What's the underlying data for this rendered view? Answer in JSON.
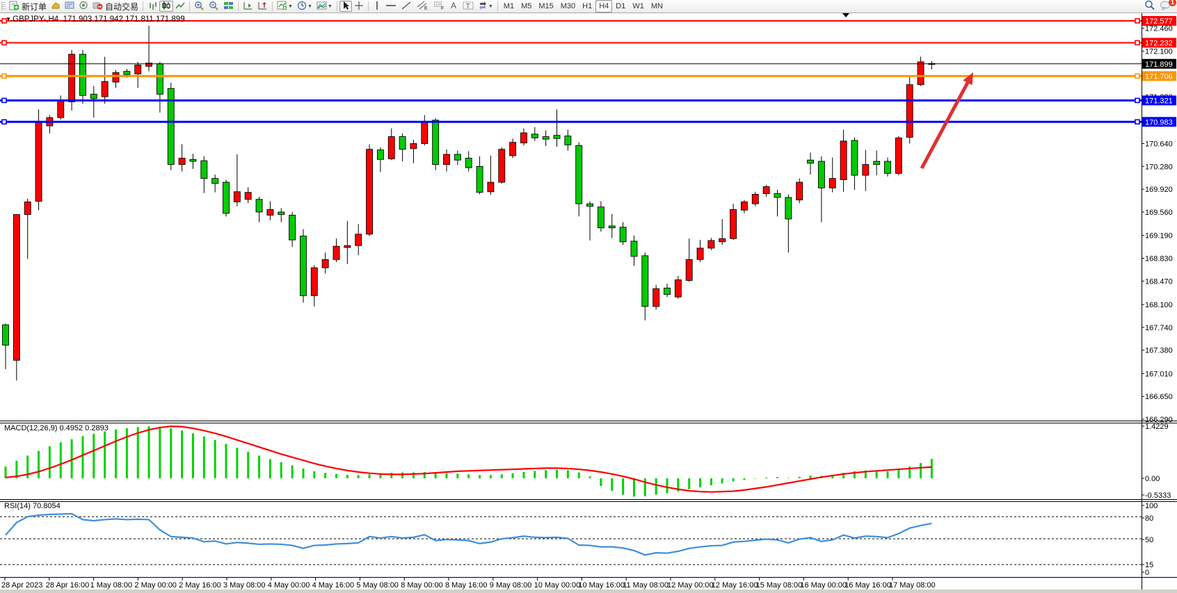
{
  "toolbar": {
    "new_order_label": "新订单",
    "autotrading_label": "自动交易",
    "timeframes": [
      "M1",
      "M5",
      "M15",
      "M30",
      "H1",
      "H4",
      "D1",
      "W1",
      "MN"
    ],
    "active_timeframe": "H4",
    "notification_count": "1"
  },
  "chart": {
    "title_symbol": "GBPJPY-,H4",
    "title_ohlc": "171.903 171.942 171.811 171.899",
    "macd_label": "MACD(12,26,9) 0.4952 0.2893",
    "rsi_label": "RSI(14) 70.8054"
  },
  "colors": {
    "up": "#FF0000",
    "down": "#00CC00",
    "wick": "#000000",
    "line_red": "#FE0000",
    "line_orange": "#FF9500",
    "line_blue": "#0000FE",
    "line_black": "#000000",
    "macd_bar": "#00D300",
    "macd_signal": "#FF0000",
    "rsi_line": "#3E8EDC",
    "arrow": "#E03030",
    "axis_text": "#000000",
    "badge_text": "#FFFFFF"
  },
  "chart_data": [
    {
      "type": "candlestick",
      "title": "GBPJPY-,H4",
      "current_ohlc": {
        "open": 171.903,
        "high": 171.942,
        "low": 171.811,
        "close": 171.899
      },
      "price_ticks": [
        172.46,
        172.1,
        171.74,
        171.38,
        171.02,
        170.64,
        170.28,
        169.92,
        169.56,
        169.19,
        168.83,
        168.47,
        168.1,
        167.74,
        167.38,
        167.01,
        166.65,
        166.29
      ],
      "badges": [
        {
          "price": 172.577,
          "color": "#FE0000"
        },
        {
          "price": 172.232,
          "color": "#FE0000"
        },
        {
          "price": 171.899,
          "color": "#000000"
        },
        {
          "price": 171.706,
          "color": "#FF9500"
        },
        {
          "price": 171.321,
          "color": "#0000FE"
        },
        {
          "price": 170.983,
          "color": "#0000FE"
        }
      ],
      "hlines": [
        {
          "price": 172.577,
          "color": "#FE0000",
          "width": 2
        },
        {
          "price": 172.232,
          "color": "#FE0000",
          "width": 2
        },
        {
          "price": 171.706,
          "color": "#FF9500",
          "width": 3
        },
        {
          "price": 171.321,
          "color": "#0000FE",
          "width": 3
        },
        {
          "price": 170.983,
          "color": "#0000FE",
          "width": 3
        }
      ],
      "current_price_line": 171.899,
      "x_labels": [
        "28 Apr 2023",
        "28 Apr 16:00",
        "1 May 08:00",
        "2 May 00:00",
        "2 May 16:00",
        "3 May 08:00",
        "4 May 00:00",
        "4 May 16:00",
        "5 May 08:00",
        "8 May 00:00",
        "8 May 16:00",
        "9 May 08:00",
        "10 May 00:00",
        "10 May 16:00",
        "11 May 08:00",
        "12 May 00:00",
        "12 May 16:00",
        "15 May 08:00",
        "16 May 00:00",
        "16 May 16:00",
        "17 May 08:00"
      ],
      "candles": [
        [
          167.78,
          167.8,
          167.08,
          167.46
        ],
        [
          167.22,
          169.53,
          166.9,
          169.52
        ],
        [
          169.52,
          169.77,
          168.82,
          169.72
        ],
        [
          169.73,
          171.18,
          169.59,
          170.99
        ],
        [
          170.92,
          171.09,
          170.8,
          171.05
        ],
        [
          171.05,
          171.4,
          171.02,
          171.31
        ],
        [
          171.3,
          172.12,
          171.16,
          172.05
        ],
        [
          172.05,
          172.12,
          171.27,
          171.4
        ],
        [
          171.42,
          171.55,
          171.05,
          171.35
        ],
        [
          171.38,
          172.01,
          171.27,
          171.62
        ],
        [
          171.61,
          171.8,
          171.52,
          171.76
        ],
        [
          171.78,
          171.82,
          171.68,
          171.73
        ],
        [
          171.74,
          171.93,
          171.52,
          171.88
        ],
        [
          171.86,
          172.5,
          171.78,
          171.91
        ],
        [
          171.9,
          171.93,
          171.13,
          171.42
        ],
        [
          171.51,
          171.6,
          170.22,
          170.31
        ],
        [
          170.31,
          170.63,
          170.2,
          170.41
        ],
        [
          170.39,
          170.48,
          170.24,
          170.36
        ],
        [
          170.37,
          170.44,
          169.86,
          170.09
        ],
        [
          170.09,
          170.15,
          169.87,
          170.01
        ],
        [
          170.03,
          170.07,
          169.49,
          169.54
        ],
        [
          169.72,
          170.47,
          169.65,
          169.88
        ],
        [
          169.76,
          169.95,
          169.7,
          169.87
        ],
        [
          169.76,
          169.8,
          169.4,
          169.56
        ],
        [
          169.51,
          169.73,
          169.43,
          169.6
        ],
        [
          169.56,
          169.62,
          169.4,
          169.52
        ],
        [
          169.51,
          169.56,
          169.01,
          169.12
        ],
        [
          169.18,
          169.29,
          168.13,
          168.24
        ],
        [
          168.24,
          168.72,
          168.07,
          168.68
        ],
        [
          168.68,
          168.92,
          168.59,
          168.81
        ],
        [
          168.81,
          169.14,
          168.77,
          169.02
        ],
        [
          169.0,
          169.42,
          168.74,
          169.03
        ],
        [
          169.03,
          169.37,
          168.88,
          169.21
        ],
        [
          169.21,
          170.63,
          169.18,
          170.55
        ],
        [
          170.54,
          170.58,
          170.19,
          170.39
        ],
        [
          170.4,
          170.88,
          170.38,
          170.75
        ],
        [
          170.75,
          170.8,
          170.36,
          170.55
        ],
        [
          170.56,
          170.7,
          170.33,
          170.64
        ],
        [
          170.64,
          171.09,
          170.61,
          170.99
        ],
        [
          171.01,
          171.04,
          170.22,
          170.31
        ],
        [
          170.31,
          170.55,
          170.2,
          170.47
        ],
        [
          170.47,
          170.53,
          170.3,
          170.38
        ],
        [
          170.41,
          170.52,
          170.2,
          170.26
        ],
        [
          170.28,
          170.44,
          169.84,
          169.87
        ],
        [
          169.88,
          170.45,
          169.83,
          170.03
        ],
        [
          170.03,
          170.58,
          170.01,
          170.55
        ],
        [
          170.45,
          170.72,
          170.41,
          170.66
        ],
        [
          170.65,
          170.88,
          170.61,
          170.81
        ],
        [
          170.79,
          170.9,
          170.68,
          170.73
        ],
        [
          170.75,
          170.85,
          170.6,
          170.71
        ],
        [
          170.77,
          171.18,
          170.59,
          170.72
        ],
        [
          170.76,
          170.86,
          170.53,
          170.62
        ],
        [
          170.61,
          170.66,
          169.49,
          169.69
        ],
        [
          169.69,
          169.73,
          169.11,
          169.65
        ],
        [
          169.64,
          169.73,
          169.25,
          169.31
        ],
        [
          169.34,
          169.53,
          169.15,
          169.31
        ],
        [
          169.32,
          169.4,
          169.04,
          169.09
        ],
        [
          169.1,
          169.19,
          168.71,
          168.86
        ],
        [
          168.87,
          168.92,
          167.85,
          168.07
        ],
        [
          168.07,
          168.41,
          168.02,
          168.35
        ],
        [
          168.36,
          168.43,
          168.22,
          168.26
        ],
        [
          168.22,
          168.55,
          168.19,
          168.49
        ],
        [
          168.48,
          169.14,
          168.46,
          168.81
        ],
        [
          168.81,
          169.12,
          168.77,
          168.99
        ],
        [
          168.99,
          169.15,
          168.96,
          169.11
        ],
        [
          169.09,
          169.45,
          169.04,
          169.14
        ],
        [
          169.14,
          169.69,
          169.12,
          169.6
        ],
        [
          169.59,
          169.75,
          169.54,
          169.72
        ],
        [
          169.69,
          169.88,
          169.65,
          169.84
        ],
        [
          169.85,
          169.99,
          169.8,
          169.96
        ],
        [
          169.85,
          169.91,
          169.49,
          169.79
        ],
        [
          169.79,
          169.84,
          168.92,
          169.45
        ],
        [
          169.75,
          170.09,
          169.7,
          170.03
        ],
        [
          170.38,
          170.5,
          170.15,
          170.33
        ],
        [
          170.36,
          170.44,
          169.4,
          169.94
        ],
        [
          169.94,
          170.42,
          169.87,
          170.09
        ],
        [
          170.07,
          170.86,
          169.88,
          170.68
        ],
        [
          170.69,
          170.74,
          169.91,
          170.14
        ],
        [
          170.14,
          170.54,
          169.89,
          170.31
        ],
        [
          170.36,
          170.53,
          170.14,
          170.31
        ],
        [
          170.36,
          170.42,
          170.12,
          170.17
        ],
        [
          170.17,
          170.76,
          170.14,
          170.73
        ],
        [
          170.74,
          171.69,
          170.64,
          171.57
        ],
        [
          171.57,
          172.01,
          171.55,
          171.93
        ],
        [
          171.903,
          171.942,
          171.811,
          171.899
        ]
      ],
      "arrow": {
        "from": [
          1325,
          242
        ],
        "to": [
          1399,
          104
        ],
        "color": "#E03030"
      }
    },
    {
      "type": "bar",
      "title": "MACD(12,26,9)",
      "current_values": [
        0.4952,
        0.2893
      ],
      "scale": {
        "max": "1.4229",
        "zero": "0.00",
        "min": "-0.5333"
      },
      "values": [
        0.3,
        0.45,
        0.58,
        0.7,
        0.82,
        0.92,
        1.0,
        1.08,
        1.14,
        1.2,
        1.25,
        1.28,
        1.31,
        1.33,
        1.32,
        1.28,
        1.22,
        1.15,
        1.07,
        0.98,
        0.88,
        0.78,
        0.68,
        0.58,
        0.49,
        0.41,
        0.33,
        0.25,
        0.18,
        0.14,
        0.11,
        0.09,
        0.08,
        0.1,
        0.12,
        0.14,
        0.15,
        0.15,
        0.16,
        0.14,
        0.13,
        0.12,
        0.1,
        0.08,
        0.08,
        0.1,
        0.13,
        0.16,
        0.19,
        0.21,
        0.22,
        0.21,
        0.15,
        0.05,
        -0.2,
        -0.32,
        -0.42,
        -0.47,
        -0.46,
        -0.42,
        -0.38,
        -0.34,
        -0.28,
        -0.23,
        -0.18,
        -0.13,
        -0.08,
        -0.04,
        -0.01,
        0.02,
        0.03,
        0.01,
        0.04,
        0.07,
        0.06,
        0.09,
        0.14,
        0.18,
        0.2,
        0.19,
        0.18,
        0.22,
        0.3,
        0.39,
        0.4952
      ],
      "signal": [
        0.02,
        0.05,
        0.1,
        0.17,
        0.26,
        0.36,
        0.47,
        0.59,
        0.71,
        0.83,
        0.95,
        1.06,
        1.16,
        1.24,
        1.3,
        1.33,
        1.32,
        1.28,
        1.22,
        1.15,
        1.07,
        0.98,
        0.89,
        0.8,
        0.71,
        0.62,
        0.54,
        0.46,
        0.38,
        0.31,
        0.25,
        0.2,
        0.16,
        0.13,
        0.11,
        0.1,
        0.1,
        0.11,
        0.12,
        0.14,
        0.16,
        0.18,
        0.19,
        0.2,
        0.21,
        0.22,
        0.23,
        0.24,
        0.25,
        0.26,
        0.26,
        0.25,
        0.23,
        0.2,
        0.16,
        0.11,
        0.05,
        -0.02,
        -0.1,
        -0.17,
        -0.23,
        -0.28,
        -0.32,
        -0.34,
        -0.35,
        -0.34,
        -0.33,
        -0.3,
        -0.26,
        -0.22,
        -0.17,
        -0.12,
        -0.07,
        -0.02,
        0.03,
        0.07,
        0.11,
        0.14,
        0.17,
        0.19,
        0.21,
        0.23,
        0.25,
        0.27,
        0.2893
      ]
    },
    {
      "type": "line",
      "title": "RSI(14)",
      "current_value": 70.8054,
      "scale_labels": [
        "100",
        "80",
        "50",
        "15",
        "0"
      ],
      "levels": [
        80,
        50,
        15
      ],
      "values": [
        55,
        72,
        80,
        82,
        83,
        83.5,
        84,
        76,
        74.5,
        76,
        77,
        76,
        76.5,
        76,
        62,
        53,
        52,
        51,
        46,
        47,
        43,
        45,
        44,
        42.5,
        43,
        42.5,
        41,
        37,
        41,
        41.5,
        43,
        43.5,
        44.5,
        53,
        51,
        53,
        51,
        52,
        55.5,
        47.5,
        49,
        48.5,
        47.5,
        43.5,
        45.5,
        50,
        51.5,
        53.5,
        52,
        51.5,
        52,
        50.5,
        41.5,
        41,
        39,
        39,
        37.5,
        34,
        28,
        31,
        30.5,
        33,
        37,
        39,
        40.5,
        41,
        45.5,
        46.5,
        48,
        49.5,
        48.5,
        44.5,
        49.5,
        51.5,
        46.5,
        48.5,
        55,
        51,
        53.5,
        53,
        51.5,
        57,
        64.5,
        68,
        70.8
      ]
    }
  ]
}
